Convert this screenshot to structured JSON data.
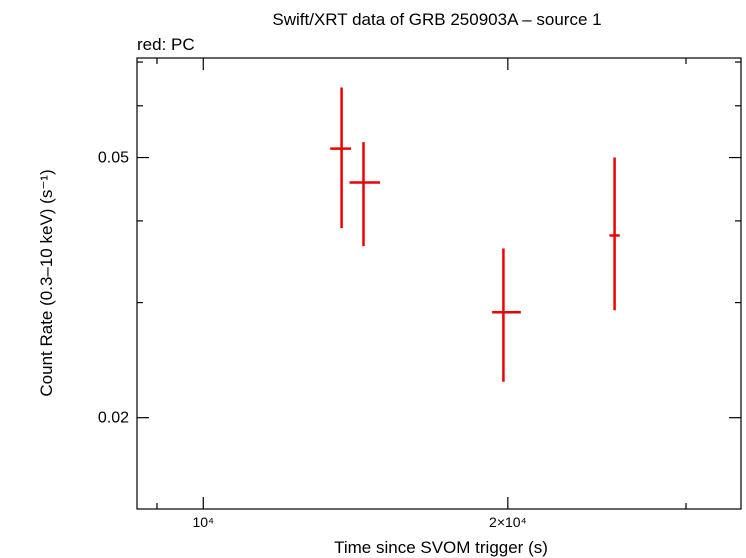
{
  "chart_data": {
    "type": "scatter",
    "title": "Swift/XRT data of GRB 250903A – source 1",
    "subtitle": "red: PC",
    "xlabel": "Time since SVOM trigger (s)",
    "ylabel": "Count Rate (0.3–10 keV) (s⁻¹)",
    "xscale": "log",
    "yscale": "log",
    "xlim": [
      8600,
      34000
    ],
    "ylim": [
      0.0145,
      0.071
    ],
    "x_tick_labels": [
      {
        "value": 10000,
        "label": "10⁴"
      },
      {
        "value": 20000,
        "label": "2×10⁴"
      }
    ],
    "y_tick_labels": [
      {
        "value": 0.05,
        "label": "0.05"
      },
      {
        "value": 0.02,
        "label": "0.02"
      }
    ],
    "grid": false,
    "series": [
      {
        "color": "#ee0000",
        "points": [
          {
            "x": 13700,
            "x_lo": 13350,
            "x_hi": 14000,
            "y": 0.0516,
            "y_lo": 0.039,
            "y_hi": 0.064
          },
          {
            "x": 14400,
            "x_lo": 13950,
            "x_hi": 14950,
            "y": 0.0458,
            "y_lo": 0.0366,
            "y_hi": 0.0528
          },
          {
            "x": 19800,
            "x_lo": 19300,
            "x_hi": 20600,
            "y": 0.029,
            "y_lo": 0.0227,
            "y_hi": 0.0363
          },
          {
            "x": 25500,
            "x_lo": 25200,
            "x_hi": 25800,
            "y": 0.038,
            "y_lo": 0.0292,
            "y_hi": 0.05
          }
        ]
      }
    ]
  }
}
